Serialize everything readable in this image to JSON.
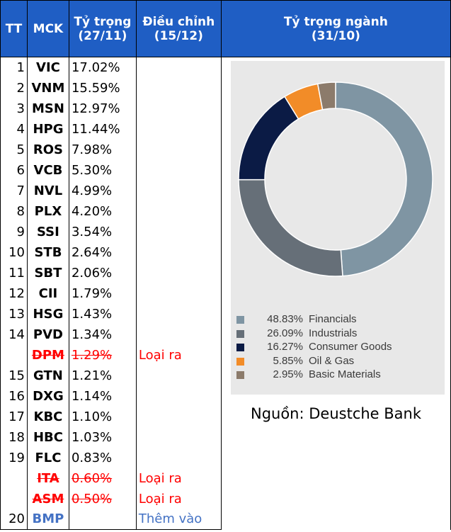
{
  "table": {
    "headers": {
      "tt": "TT",
      "mck": "MCK",
      "weight_line1": "Tỷ trọng",
      "weight_line2": "(27/11)",
      "adj_line1": "Điều chỉnh",
      "adj_line2": "(15/12)",
      "sector_line1": "Tỷ trọng ngành",
      "sector_line2": "(31/10)"
    },
    "rows": [
      {
        "tt": "1",
        "mck": "VIC",
        "weight": "17.02%",
        "adjust": "",
        "status": "normal"
      },
      {
        "tt": "2",
        "mck": "VNM",
        "weight": "15.59%",
        "adjust": "",
        "status": "normal"
      },
      {
        "tt": "3",
        "mck": "MSN",
        "weight": "12.97%",
        "adjust": "",
        "status": "normal"
      },
      {
        "tt": "4",
        "mck": "HPG",
        "weight": "11.44%",
        "adjust": "",
        "status": "normal"
      },
      {
        "tt": "5",
        "mck": "ROS",
        "weight": "7.98%",
        "adjust": "",
        "status": "normal"
      },
      {
        "tt": "6",
        "mck": "VCB",
        "weight": "5.30%",
        "adjust": "",
        "status": "normal"
      },
      {
        "tt": "7",
        "mck": "NVL",
        "weight": "4.99%",
        "adjust": "",
        "status": "normal"
      },
      {
        "tt": "8",
        "mck": "PLX",
        "weight": "4.20%",
        "adjust": "",
        "status": "normal"
      },
      {
        "tt": "9",
        "mck": "SSI",
        "weight": "3.54%",
        "adjust": "",
        "status": "normal"
      },
      {
        "tt": "10",
        "mck": "STB",
        "weight": "2.64%",
        "adjust": "",
        "status": "normal"
      },
      {
        "tt": "11",
        "mck": "SBT",
        "weight": "2.06%",
        "adjust": "",
        "status": "normal"
      },
      {
        "tt": "12",
        "mck": "CII",
        "weight": "1.79%",
        "adjust": "",
        "status": "normal"
      },
      {
        "tt": "13",
        "mck": "HSG",
        "weight": "1.43%",
        "adjust": "",
        "status": "normal"
      },
      {
        "tt": "14",
        "mck": "PVD",
        "weight": "1.34%",
        "adjust": "",
        "status": "normal"
      },
      {
        "tt": "",
        "mck": "DPM",
        "weight": "1.29%",
        "adjust": "Loại ra",
        "status": "removed"
      },
      {
        "tt": "15",
        "mck": "GTN",
        "weight": "1.21%",
        "adjust": "",
        "status": "normal"
      },
      {
        "tt": "16",
        "mck": "DXG",
        "weight": "1.14%",
        "adjust": "",
        "status": "normal"
      },
      {
        "tt": "17",
        "mck": "KBC",
        "weight": "1.10%",
        "adjust": "",
        "status": "normal"
      },
      {
        "tt": "18",
        "mck": "HBC",
        "weight": "1.03%",
        "adjust": "",
        "status": "normal"
      },
      {
        "tt": "19",
        "mck": "FLC",
        "weight": "0.83%",
        "adjust": "",
        "status": "normal"
      },
      {
        "tt": "",
        "mck": "ITA",
        "weight": "0.60%",
        "adjust": "Loại ra",
        "status": "removed"
      },
      {
        "tt": "",
        "mck": "ASM",
        "weight": "0.50%",
        "adjust": "Loại ra",
        "status": "removed"
      },
      {
        "tt": "20",
        "mck": "BMP",
        "weight": "",
        "adjust": "Thêm vào",
        "status": "added"
      }
    ]
  },
  "chart_data": {
    "type": "pie",
    "title": "",
    "donut": true,
    "legend_position": "bottom-left",
    "slices": [
      {
        "label": "Financials",
        "value": 48.83,
        "pct_label": "48.83%",
        "color": "#7f95a3"
      },
      {
        "label": "Industrials",
        "value": 26.09,
        "pct_label": "26.09%",
        "color": "#666f78"
      },
      {
        "label": "Consumer Goods",
        "value": 16.27,
        "pct_label": "16.27%",
        "color": "#0b1b45"
      },
      {
        "label": "Oil & Gas",
        "value": 5.85,
        "pct_label": "5.85%",
        "color": "#f28c28"
      },
      {
        "label": "Basic Materials",
        "value": 2.95,
        "pct_label": "2.95%",
        "color": "#8c7b6b"
      }
    ]
  },
  "source": "Nguồn: Deustche Bank"
}
